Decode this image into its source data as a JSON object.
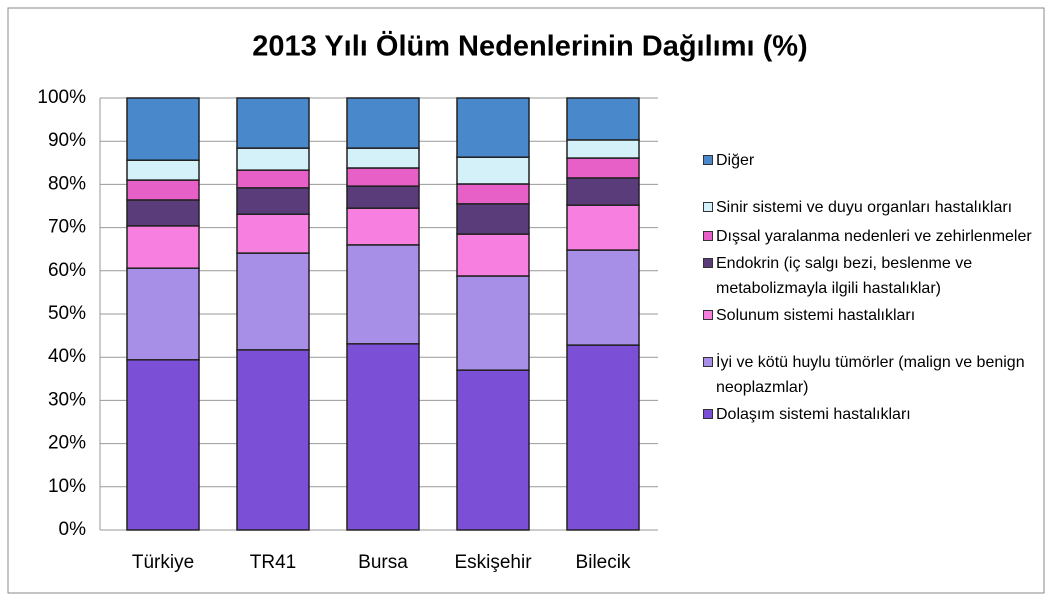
{
  "chart_data": {
    "type": "stacked_bar",
    "title": "2013 Yılı Ölüm Nedenlerinin Dağılımı (%)",
    "categories": [
      "Türkiye",
      "TR41",
      "Bursa",
      "Eskişehir",
      "Bilecik"
    ],
    "series": [
      {
        "name": "Dolaşım sistemi hastalıkları",
        "color": "#7b4fd6",
        "values": [
          39.4,
          41.7,
          43.1,
          37.0,
          42.8
        ]
      },
      {
        "name": "İyi ve kötü huylu tümörler (malign ve benign neoplazmlar)",
        "color": "#a78ee6",
        "values": [
          21.2,
          22.4,
          22.9,
          21.8,
          22.0
        ]
      },
      {
        "name": "Solunum sistemi hastalıkları",
        "color": "#f77fe0",
        "values": [
          9.8,
          9.0,
          8.5,
          9.7,
          10.4
        ]
      },
      {
        "name": "Endokrin (iç salgı bezi, beslenme ve metabolizmayla ilgili hastalıklar)",
        "color": "#5a3c7a",
        "values": [
          6.0,
          6.1,
          5.1,
          7.0,
          6.3
        ]
      },
      {
        "name": "Dışsal yaralanma nedenleri ve zehirlenmeler",
        "color": "#e760c8",
        "values": [
          4.6,
          4.1,
          4.2,
          4.6,
          4.6
        ]
      },
      {
        "name": "Sinir sistemi ve duyu organları hastalıkları",
        "color": "#d4f0f8",
        "values": [
          4.6,
          5.1,
          4.6,
          6.2,
          4.2
        ]
      },
      {
        "name": "Diğer",
        "color": "#4a88cc",
        "values": [
          14.4,
          11.6,
          11.6,
          13.7,
          9.7
        ]
      }
    ],
    "ylim": [
      0,
      100
    ],
    "yticks": [
      {
        "value": 0,
        "label": "0%"
      },
      {
        "value": 10,
        "label": "10%"
      },
      {
        "value": 20,
        "label": "20%"
      },
      {
        "value": 30,
        "label": "30%"
      },
      {
        "value": 40,
        "label": "40%"
      },
      {
        "value": 50,
        "label": "50%"
      },
      {
        "value": 60,
        "label": "60%"
      },
      {
        "value": 70,
        "label": "70%"
      },
      {
        "value": 80,
        "label": "80%"
      },
      {
        "value": 90,
        "label": "90%"
      },
      {
        "value": 100,
        "label": "100%"
      }
    ],
    "grid": true,
    "legend": "right"
  }
}
